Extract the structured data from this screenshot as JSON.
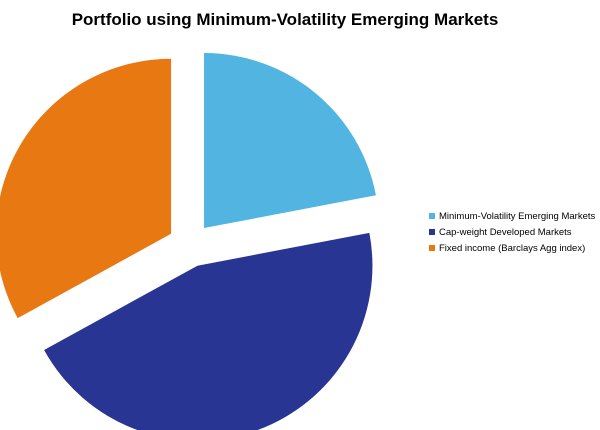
{
  "chart_data": {
    "type": "pie",
    "title": "Portfolio using Minimum-Volatility Emerging Markets",
    "exploded": true,
    "legend_position": "right",
    "slices": [
      {
        "label": "Minimum-Volatility Emerging Markets",
        "value": 22,
        "color": "#52b4e0"
      },
      {
        "label": "Cap-weight Developed Markets",
        "value": 45,
        "color": "#283593"
      },
      {
        "label": "Fixed income (Barclays Agg index)",
        "value": 33,
        "color": "#e87812"
      }
    ]
  }
}
